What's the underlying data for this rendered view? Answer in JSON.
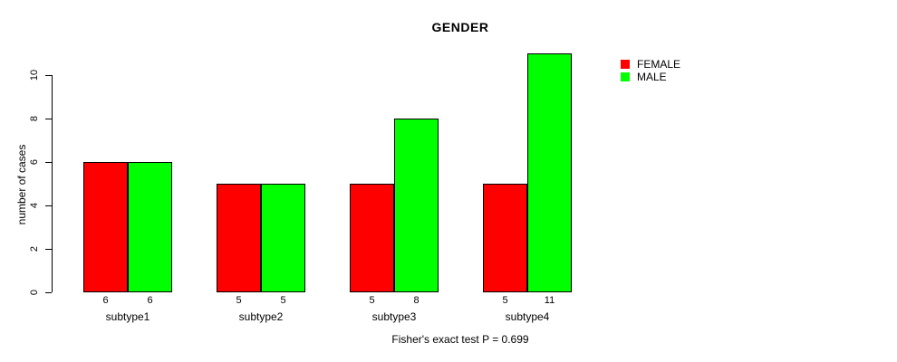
{
  "chart_data": {
    "type": "bar",
    "title": "GENDER",
    "categories": [
      "subtype1",
      "subtype2",
      "subtype3",
      "subtype4"
    ],
    "series": [
      {
        "name": "FEMALE",
        "color": "#ff0000",
        "values": [
          6,
          5,
          5,
          5
        ]
      },
      {
        "name": "MALE",
        "color": "#00ff00",
        "values": [
          6,
          5,
          8,
          11
        ]
      }
    ],
    "xlabel": "",
    "ylabel": "number of cases",
    "ylim": [
      0,
      11
    ],
    "yticks": [
      0,
      2,
      4,
      6,
      8,
      10
    ],
    "bar_value_labels": true,
    "grid": false,
    "legend_position": "right",
    "footnote": "Fisher's exact test P = 0.699"
  }
}
